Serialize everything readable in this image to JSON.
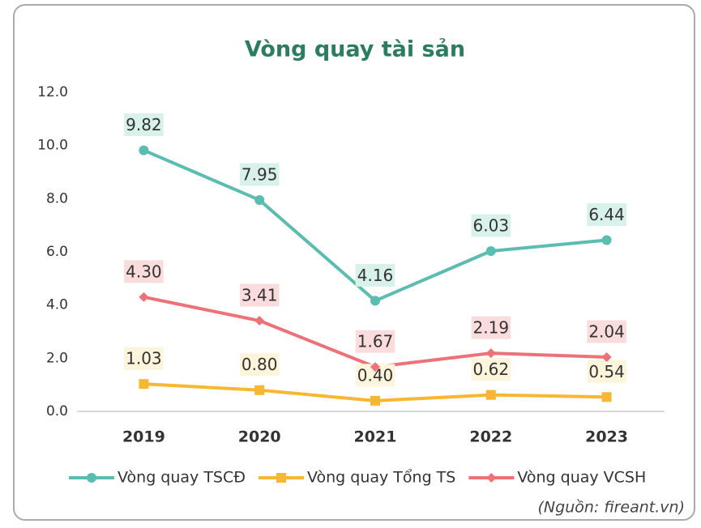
{
  "chart_data": {
    "type": "line",
    "title": "Vòng quay tài sản",
    "source": "(Nguồn: fireant.vn)",
    "categories": [
      "2019",
      "2020",
      "2021",
      "2022",
      "2023"
    ],
    "series": [
      {
        "name": "Vòng quay TSCĐ",
        "color": "#5bbcb0",
        "marker": "circle",
        "label_bg": "#d8f1ea",
        "values": [
          9.82,
          7.95,
          4.16,
          6.03,
          6.44
        ],
        "value_labels": [
          "9.82",
          "7.95",
          "4.16",
          "6.03",
          "6.44"
        ]
      },
      {
        "name": "Vòng quay Tổng TS",
        "color": "#f8b733",
        "marker": "square",
        "label_bg": "#fdf4dc",
        "values": [
          1.03,
          0.8,
          0.4,
          0.62,
          0.54
        ],
        "value_labels": [
          "1.03",
          "0.80",
          "0.40",
          "0.62",
          "0.54"
        ]
      },
      {
        "name": "Vòng quay VCSH",
        "color": "#ed7176",
        "marker": "diamond",
        "label_bg": "#fadcdc",
        "values": [
          4.3,
          3.41,
          1.67,
          2.19,
          2.04
        ],
        "value_labels": [
          "4.30",
          "3.41",
          "1.67",
          "2.19",
          "2.04"
        ]
      }
    ],
    "ylim": [
      0,
      12
    ],
    "yticks": [
      {
        "value": 0,
        "label": "0.0"
      },
      {
        "value": 2,
        "label": "2.0"
      },
      {
        "value": 4,
        "label": "4.0"
      },
      {
        "value": 6,
        "label": "6.0"
      },
      {
        "value": 8,
        "label": "8.0"
      },
      {
        "value": 10,
        "label": "10.0"
      },
      {
        "value": 12,
        "label": "12.0"
      }
    ],
    "grid": false,
    "legend": "bottom"
  }
}
